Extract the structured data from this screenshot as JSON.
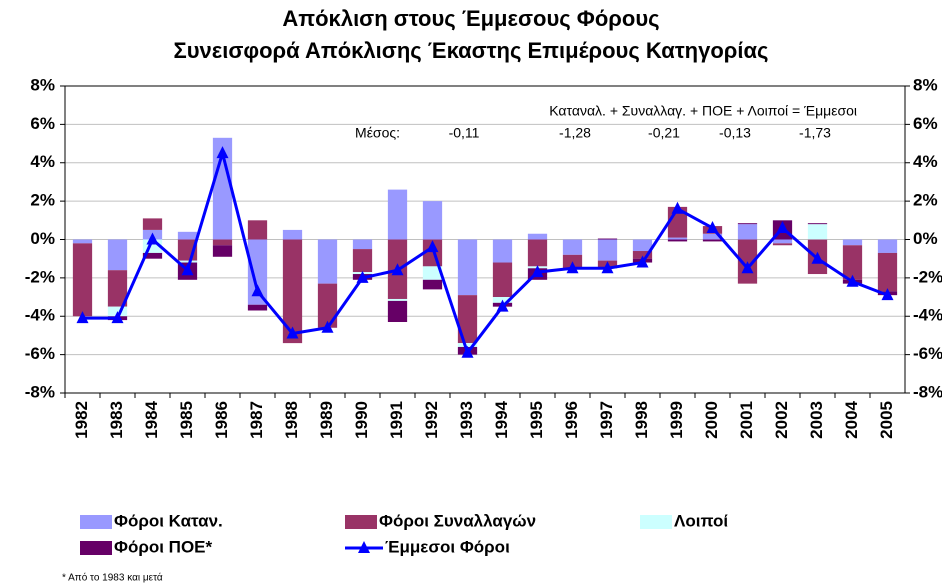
{
  "chart_data": {
    "type": "bar",
    "stacked": true,
    "title": "Απόκλιση στους Έμμεσους Φόρους",
    "subtitle": "Συνεισφορά Απόκλισης Έκαστης Επιμέρους Κατηγορίας",
    "annotations": {
      "formula": "Καταναλ. + Συναλλαγ. + ΠΟΕ + Λοιποί = Έμμεσοι",
      "mean_label": "Μέσος:",
      "means": [
        "-0,11",
        "-1,28",
        "-0,21",
        "-0,13",
        "-1,73"
      ]
    },
    "footnote": "* Από το 1983 και μετά",
    "categories": [
      "1982",
      "1983",
      "1984",
      "1985",
      "1986",
      "1987",
      "1988",
      "1989",
      "1990",
      "1991",
      "1992",
      "1993",
      "1994",
      "1995",
      "1996",
      "1997",
      "1998",
      "1999",
      "2000",
      "2001",
      "2002",
      "2003",
      "2004",
      "2005"
    ],
    "series": [
      {
        "name": "Φόροι Καταν.",
        "color": "#9999ff",
        "values": [
          -0.2,
          -1.6,
          0.5,
          0.4,
          5.3,
          -3.4,
          0.5,
          -2.3,
          -0.5,
          2.6,
          2.0,
          -2.9,
          -1.2,
          0.3,
          -0.8,
          -1.1,
          -0.6,
          0.1,
          0.3,
          0.8,
          -0.2,
          0,
          -0.3,
          -0.7
        ]
      },
      {
        "name": "Φόροι Συναλλαγών",
        "color": "#993366",
        "values": [
          -3.8,
          -1.9,
          0.6,
          -1.1,
          -0.3,
          1.0,
          -5.4,
          -2.3,
          -1.2,
          -3.1,
          -1.4,
          -2.5,
          -1.8,
          -1.4,
          -0.7,
          -0.4,
          -0.4,
          1.6,
          0.4,
          -2.3,
          -0.1,
          -1.8,
          -1.8,
          -2.0
        ]
      },
      {
        "name": "Λοιποί",
        "color": "#ccffff",
        "values": [
          0,
          -0.5,
          -0.7,
          -0.1,
          0,
          0,
          0,
          0,
          -0.1,
          -0.1,
          -0.7,
          -0.2,
          -0.3,
          -0.1,
          0,
          0,
          0,
          0,
          0,
          0,
          0,
          0.8,
          0,
          0
        ]
      },
      {
        "name": "Φόροι  ΠΟΕ*",
        "color": "#660066",
        "values": [
          0,
          -0.2,
          -0.3,
          -0.9,
          -0.6,
          -0.3,
          0,
          0,
          -0.3,
          -1.1,
          -0.5,
          -0.4,
          -0.2,
          -0.6,
          0,
          0.05,
          -0.2,
          -0.1,
          -0.1,
          0.05,
          1.0,
          0.05,
          -0.2,
          -0.2
        ]
      },
      {
        "name": "Έμμεσοι Φόροι",
        "color": "#0000ff",
        "type": "line",
        "values": [
          -4.1,
          -4.1,
          0,
          -1.6,
          4.5,
          -2.7,
          -4.9,
          -4.6,
          -2.0,
          -1.6,
          -0.4,
          -5.9,
          -3.5,
          -1.7,
          -1.5,
          -1.5,
          -1.2,
          1.6,
          0.6,
          -1.5,
          0.6,
          -1.0,
          -2.2,
          -2.9
        ]
      }
    ],
    "ylim": [
      -8,
      8
    ],
    "y2lim": [
      -8,
      8
    ],
    "yticks": [
      {
        "value": -8,
        "label": "-8%"
      },
      {
        "value": -6,
        "label": "-6%"
      },
      {
        "value": -4,
        "label": "-4%"
      },
      {
        "value": -2,
        "label": "-2%"
      },
      {
        "value": 0,
        "label": "0%"
      },
      {
        "value": 2,
        "label": "2%"
      },
      {
        "value": 4,
        "label": "4%"
      },
      {
        "value": 6,
        "label": "6%"
      },
      {
        "value": 8,
        "label": "8%"
      }
    ],
    "y2ticks": [
      {
        "value": -8,
        "label": "-8%"
      },
      {
        "value": -6,
        "label": "-6%"
      },
      {
        "value": -4,
        "label": "-4%"
      },
      {
        "value": -2,
        "label": "-2%"
      },
      {
        "value": 0,
        "label": "0%"
      },
      {
        "value": 2,
        "label": "2%"
      },
      {
        "value": 4,
        "label": "4%"
      },
      {
        "value": 6,
        "label": "6%"
      },
      {
        "value": 8,
        "label": "8%"
      }
    ],
    "grid": true
  }
}
